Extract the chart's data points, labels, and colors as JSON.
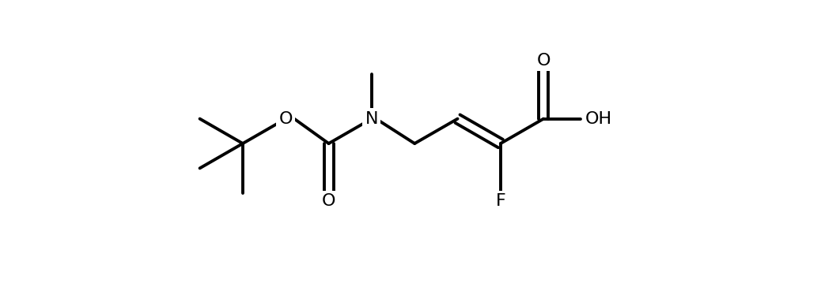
{
  "background_color": "#ffffff",
  "line_color": "#000000",
  "line_width": 2.8,
  "font_size": 16,
  "figsize": [
    10.38,
    3.64
  ],
  "dpi": 100,
  "xlim": [
    -0.3,
    11.0
  ],
  "ylim": [
    -2.8,
    3.2
  ],
  "labels": {
    "O1": "O",
    "O2": "O",
    "O3": "O",
    "N": "N",
    "F": "F",
    "OH": "OH"
  }
}
